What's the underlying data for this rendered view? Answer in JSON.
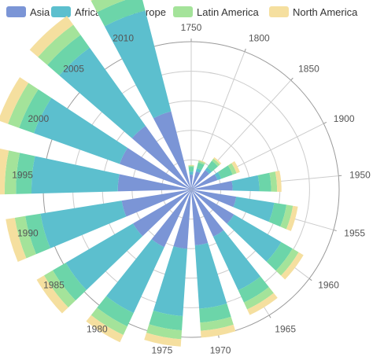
{
  "chart_data": {
    "type": "polar-stacked-bar",
    "title": "",
    "categories": [
      "1750",
      "1800",
      "1850",
      "1900",
      "1950",
      "1955",
      "1960",
      "1965",
      "1970",
      "1975",
      "1980",
      "1985",
      "1990",
      "1995",
      "2000",
      "2005",
      "2010"
    ],
    "rlim": [
      0,
      5000
    ],
    "grid": true,
    "legend_position": "top",
    "series": [
      {
        "name": "Asia",
        "color": "#7b95d6",
        "values": [
          502,
          635,
          809,
          947,
          1402,
          1542,
          1675,
          1760,
          1891,
          2010,
          2150,
          2280,
          2380,
          2480,
          2570,
          2650,
          2730
        ]
      },
      {
        "name": "Africa",
        "color": "#5cbfce",
        "values": [
          106,
          107,
          111,
          133,
          900,
          1300,
          1850,
          2000,
          2150,
          2280,
          2460,
          2630,
          2780,
          2920,
          3080,
          3250,
          3520
        ]
      },
      {
        "name": "Europe",
        "color": "#6cd5a9",
        "values": [
          163,
          203,
          276,
          408,
          400,
          420,
          440,
          455,
          470,
          485,
          500,
          510,
          520,
          525,
          528,
          530,
          535
        ]
      },
      {
        "name": "Latin America",
        "color": "#a4e39a",
        "values": [
          40,
          60,
          90,
          140,
          200,
          220,
          240,
          260,
          280,
          300,
          320,
          340,
          360,
          380,
          400,
          420,
          440
        ]
      },
      {
        "name": "North America",
        "color": "#f5df9f",
        "values": [
          20,
          30,
          60,
          120,
          150,
          170,
          190,
          210,
          230,
          250,
          270,
          290,
          310,
          330,
          350,
          370,
          390
        ]
      }
    ]
  }
}
